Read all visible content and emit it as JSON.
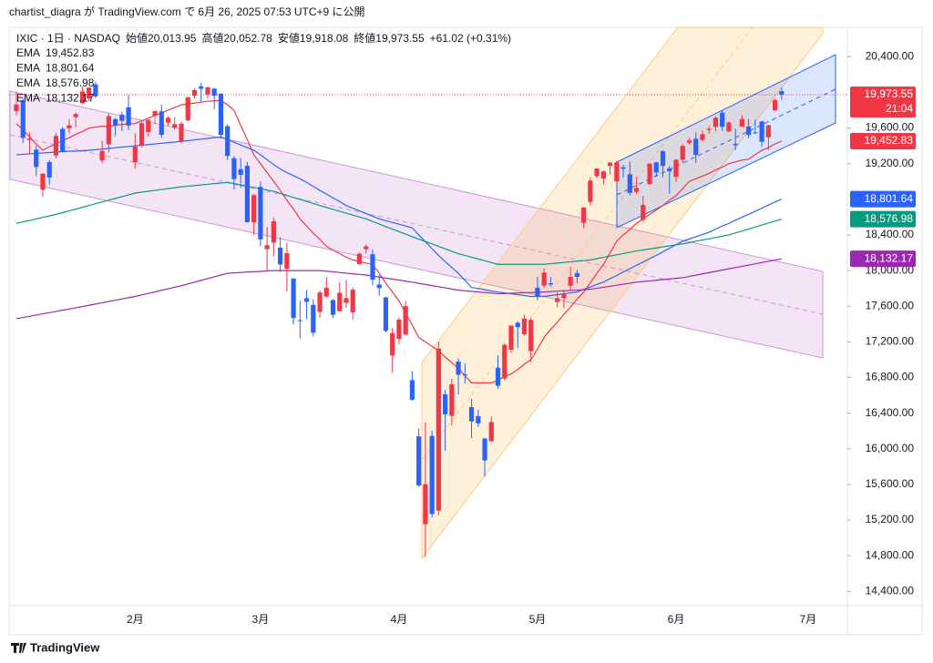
{
  "header": "chartist_diagra が TradingView.com で 6月 26, 2025 07:53 UTC+9 に公開",
  "footer": "TradingView",
  "chart_data": {
    "type": "candlestick",
    "symbol": "IXIC · 1日 · NASDAQ",
    "ohlc_legend": [
      {
        "label": "始値",
        "value": "20,013.95"
      },
      {
        "label": "高値",
        "value": "20,052.78"
      },
      {
        "label": "安値",
        "value": "19,918.08"
      },
      {
        "label": "終値",
        "value": "19,973.55"
      }
    ],
    "change": "+61.02 (+0.31%)",
    "last_price_label": "19,973.55",
    "countdown": "21:04",
    "up_color": "#f23645",
    "down_color": "#2962ff",
    "grid": false,
    "ylim": [
      14240,
      20730
    ],
    "yticks": [
      {
        "value": 20400,
        "label": "20,400.00"
      },
      {
        "value": 19600,
        "label": "19,600.00"
      },
      {
        "value": 19200,
        "label": "19,200.00"
      },
      {
        "value": 18400,
        "label": "18,400.00"
      },
      {
        "value": 18000,
        "label": "18,000.00"
      },
      {
        "value": 17600,
        "label": "17,600.00"
      },
      {
        "value": 17200,
        "label": "17,200.00"
      },
      {
        "value": 16800,
        "label": "16,800.00"
      },
      {
        "value": 16400,
        "label": "16,400.00"
      },
      {
        "value": 16000,
        "label": "16,000.00"
      },
      {
        "value": 15600,
        "label": "15,600.00"
      },
      {
        "value": 15200,
        "label": "15,200.00"
      },
      {
        "value": 14800,
        "label": "14,800.00"
      },
      {
        "value": 14400,
        "label": "14,400.00"
      }
    ],
    "categories": [
      null,
      null,
      null,
      null,
      null,
      null,
      null,
      null,
      null,
      null,
      null,
      null,
      null,
      null,
      null,
      null,
      null,
      null,
      "2月",
      null,
      null,
      null,
      null,
      null,
      null,
      null,
      null,
      null,
      null,
      null,
      null,
      null,
      null,
      null,
      null,
      null,
      null,
      "3月",
      null,
      null,
      null,
      null,
      null,
      null,
      null,
      null,
      null,
      null,
      null,
      null,
      null,
      null,
      null,
      null,
      null,
      null,
      null,
      null,
      "4月",
      null,
      null,
      null,
      null,
      null,
      null,
      null,
      null,
      null,
      null,
      null,
      null,
      null,
      null,
      null,
      null,
      null,
      null,
      null,
      null,
      "5月",
      null,
      null,
      null,
      null,
      null,
      null,
      null,
      null,
      null,
      null,
      null,
      null,
      null,
      null,
      null,
      null,
      null,
      null,
      null,
      null,
      "6月",
      null,
      null,
      null,
      null,
      null,
      null,
      null,
      null,
      null,
      null,
      null,
      null,
      null,
      null,
      null,
      null,
      null,
      null,
      null,
      "7月"
    ],
    "open": [
      19790,
      19909,
      19465,
      19358,
      18906,
      19218,
      19293,
      19590,
      19597,
      19722,
      19878,
      19932,
      20089,
      19234,
      19418,
      19699,
      19750,
      19832,
      19215,
      19400,
      19555,
      19736,
      19787,
      19660,
      19603,
      19454,
      19685,
      19963,
      20068,
      19976,
      20042,
      19986,
      19620,
      19260,
      19138,
      19176,
      18541,
      18938,
      18240,
      18314,
      18258,
      18021,
      17911,
      17443,
      17690,
      17615,
      17536,
      17709,
      17669,
      17544,
      17638,
      17532,
      18072,
      18240,
      18183,
      17843,
      17698,
      17047,
      17232,
      17281,
      16771,
      16139,
      15153,
      16144,
      15306,
      16612,
      16369,
      16980,
      16835,
      16468,
      16367,
      16115,
      16085,
      16911,
      16789,
      17111,
      17414,
      17285,
      17097,
      17808,
      17832,
      17858,
      17647,
      17693,
      17830,
      17972,
      18537,
      18771,
      19060,
      19032,
      19175,
      19001,
      19160,
      19081,
      18883,
      18570,
      18971,
      19214,
      19340,
      19147,
      19051,
      19243,
      19435,
      19479,
      19467,
      19579,
      19613,
      19772,
      19562,
      19421,
      19615,
      19616,
      19551,
      19674,
      19495,
      19800,
      20013.95,
      null,
      null,
      null,
      null
    ],
    "high": [
      20007,
      19936,
      19551,
      19402,
      19089,
      19237,
      19548,
      19610,
      19701,
      19774,
      20069,
      20056,
      20118,
      19459,
      19763,
      19713,
      19782,
      19969,
      19538,
      19671,
      19696,
      19792,
      19862,
      19733,
      19721,
      19675,
      19950,
      20045,
      20110,
      20065,
      20048,
      19986,
      19643,
      19285,
      19264,
      19219,
      18859,
      19000,
      18491,
      18597,
      18375,
      18314,
      17911,
      17660,
      17783,
      17678,
      17777,
      17922,
      17681,
      17865,
      17897,
      17811,
      18202,
      18293,
      18240,
      17950,
      17707,
      17353,
      17473,
      17660,
      16872,
      16229,
      16292,
      16203,
      17203,
      16665,
      16788,
      17014,
      16959,
      16560,
      16438,
      16123,
      16364,
      17049,
      17183,
      17383,
      17432,
      17505,
      17473,
      17929,
      18025,
      17932,
      17758,
      17786,
      18041,
      18005,
      18714,
      19049,
      19151,
      19125,
      19220,
      19232,
      19189,
      19225,
      19050,
      18840,
      19206,
      19221,
      19354,
      19174,
      19251,
      19420,
      19489,
      19550,
      19569,
      19624,
      19734,
      19803,
      19675,
      19593,
      19745,
      19702,
      19694,
      19681,
      19635,
      19932,
      20052.78,
      null,
      null,
      null,
      null
    ],
    "low": [
      19737,
      19433,
      19308,
      19061,
      18831,
      18964,
      19258,
      19334,
      19537,
      19602,
      19870,
      19903,
      19935,
      19204,
      19326,
      19509,
      19565,
      19576,
      19141,
      19384,
      19502,
      19643,
      19491,
      19626,
      19580,
      19431,
      19675,
      19932,
      19897,
      19927,
      19811,
      19482,
      19241,
      18910,
      18929,
      18538,
      18399,
      18276,
      17991,
      18162,
      17988,
      17768,
      17394,
      17238,
      17455,
      17262,
      17470,
      17694,
      17468,
      17544,
      17581,
      17450,
      18066,
      18191,
      17833,
      17716,
      17307,
      16855,
      17175,
      17281,
      16539,
      15575,
      14784,
      15227,
      15257,
      15979,
      16262,
      16608,
      16733,
      16120,
      16245,
      15685,
      16084,
      16670,
      16766,
      17074,
      17128,
      17269,
      16974,
      17667,
      17806,
      17820,
      17590,
      17578,
      17778,
      17858,
      18477,
      18733,
      19037,
      18966,
      19081,
      18990,
      19044,
      18843,
      18858,
      18550,
      18962,
      19054,
      19047,
      18862,
      18995,
      19210,
      19415,
      19209,
      19449,
      19536,
      19560,
      19570,
      19553,
      19352,
      19615,
      19485,
      19532,
      19388,
      19352,
      19790,
      19918.08,
      null,
      null,
      null,
      null
    ],
    "close": [
      19864,
      19490,
      19479,
      19162,
      19088,
      19044,
      19511,
      19338,
      19630,
      19757,
      20009,
      20054,
      19954,
      19342,
      19734,
      19632,
      19681,
      19627,
      19391,
      19654,
      19692,
      19791,
      19523,
      19714,
      19643,
      19649,
      19945,
      20026,
      20041,
      20056,
      19962,
      19524,
      19286,
      19026,
      19075,
      18544,
      18847,
      18350,
      18285,
      18553,
      18069,
      18196,
      17468,
      17436,
      17649,
      17303,
      17754,
      17808,
      17504,
      17751,
      17692,
      17784,
      18189,
      18272,
      17899,
      17804,
      17323,
      17299,
      17450,
      17601,
      16551,
      15588,
      15603,
      15268,
      17125,
      16387,
      16724,
      16831,
      16823,
      16307,
      16286,
      15870,
      16300,
      16708,
      17166,
      17383,
      17366,
      17461,
      17446,
      17710,
      17978,
      17844,
      17690,
      17738,
      17929,
      17929,
      18708,
      19010,
      19146,
      19112,
      19211,
      19215,
      19143,
      18872,
      18926,
      18737,
      19199,
      19101,
      19175,
      19114,
      19243,
      19399,
      19460,
      19298,
      19530,
      19591,
      19715,
      19615,
      19662,
      19407,
      19701,
      19521,
      19546,
      19447,
      19631,
      19913,
      19973.55,
      null,
      null,
      null,
      null
    ],
    "series": [
      {
        "name": "EMA",
        "color": "#f23645",
        "last_label": "19,452.83",
        "values": [
          19650,
          19580,
          19500,
          19420,
          19350,
          19390,
          19420,
          19460,
          19490,
          19530,
          19560,
          19600,
          19610,
          19620,
          19620,
          19630,
          19640,
          19645,
          19650,
          19680,
          19710,
          19740,
          19770,
          19800,
          19830,
          19860,
          19870,
          19880,
          19890,
          19900,
          19905,
          19910,
          19860,
          19800,
          19630,
          19470,
          19300,
          19200,
          19100,
          19000,
          18900,
          18790,
          18690,
          18580,
          18500,
          18420,
          18350,
          18270,
          18230,
          18190,
          18150,
          18120,
          18100,
          18085,
          18070,
          17970,
          17860,
          17760,
          17660,
          17520,
          17390,
          17250,
          17200,
          17150,
          17100,
          17030,
          16970,
          16900,
          16820,
          16740,
          16740,
          16740,
          16740,
          16770,
          16810,
          16840,
          16890,
          16950,
          17000,
          17120,
          17250,
          17340,
          17420,
          17510,
          17590,
          17680,
          17760,
          17860,
          17970,
          18070,
          18200,
          18330,
          18400,
          18460,
          18530,
          18580,
          18630,
          18680,
          18730,
          18790,
          18840,
          18920,
          19000,
          19030,
          19060,
          19090,
          19130,
          19160,
          19200,
          19220,
          19240,
          19250,
          19300,
          19350,
          19380,
          19420,
          19452.83,
          null,
          null,
          null,
          null
        ]
      },
      {
        "name": "EMA",
        "color": "#2962ff",
        "last_label": "18,801.64",
        "values": [
          19300,
          19305,
          19310,
          19315,
          19320,
          19325,
          19330,
          19335,
          19340,
          19340,
          19345,
          19350,
          19357,
          19364,
          19371,
          19379,
          19386,
          19393,
          19400,
          19407,
          19414,
          19421,
          19429,
          19436,
          19443,
          19450,
          19458,
          19467,
          19475,
          19483,
          19492,
          19500,
          19470,
          19440,
          19410,
          19380,
          19350,
          19300,
          19245,
          19190,
          19140,
          19100,
          19065,
          19030,
          18990,
          18945,
          18900,
          18860,
          18815,
          18775,
          18730,
          18700,
          18670,
          18640,
          18610,
          18580,
          18560,
          18540,
          18520,
          18500,
          18480,
          18400,
          18325,
          18245,
          18170,
          18100,
          18035,
          17970,
          17890,
          17810,
          17800,
          17785,
          17770,
          17760,
          17750,
          17740,
          17730,
          17720,
          17710,
          17710,
          17710,
          17720,
          17730,
          17740,
          17750,
          17760,
          17790,
          17815,
          17845,
          17870,
          17910,
          17945,
          17985,
          18020,
          18060,
          18095,
          18135,
          18170,
          18210,
          18250,
          18290,
          18330,
          18355,
          18380,
          18405,
          18430,
          18465,
          18500,
          18530,
          18565,
          18600,
          18630,
          18665,
          18700,
          18735,
          18770,
          18801.64,
          null,
          null,
          null,
          null
        ]
      },
      {
        "name": "EMA",
        "color": "#089981",
        "last_label": "18,576.98",
        "values": [
          18530,
          18547,
          18563,
          18580,
          18597,
          18613,
          18630,
          18650,
          18670,
          18690,
          18710,
          18730,
          18750,
          18770,
          18790,
          18810,
          18830,
          18850,
          18870,
          18880,
          18890,
          18900,
          18910,
          18920,
          18930,
          18940,
          18947,
          18954,
          18961,
          18969,
          18976,
          18983,
          18990,
          18976,
          18961,
          18947,
          18933,
          18919,
          18904,
          18890,
          18867,
          18844,
          18821,
          18799,
          18776,
          18753,
          18730,
          18709,
          18687,
          18666,
          18644,
          18623,
          18601,
          18580,
          18551,
          18523,
          18494,
          18466,
          18437,
          18409,
          18380,
          18353,
          18326,
          18299,
          18271,
          18244,
          18217,
          18190,
          18170,
          18150,
          18130,
          18110,
          18090,
          18070,
          18070,
          18070,
          18070,
          18070,
          18070,
          18070,
          18070,
          18077,
          18084,
          18091,
          18099,
          18106,
          18113,
          18120,
          18134,
          18149,
          18163,
          18177,
          18191,
          18206,
          18220,
          18231,
          18243,
          18254,
          18266,
          18277,
          18289,
          18300,
          18314,
          18329,
          18343,
          18357,
          18371,
          18386,
          18400,
          18422,
          18444,
          18466,
          18488,
          18511,
          18533,
          18555,
          18576.98,
          null,
          null,
          null,
          null
        ]
      },
      {
        "name": "EMA",
        "color": "#9c27b0",
        "last_label": "18,132.17",
        "values": [
          17460,
          17474,
          17487,
          17501,
          17515,
          17528,
          17542,
          17555,
          17569,
          17583,
          17596,
          17610,
          17624,
          17639,
          17653,
          17667,
          17681,
          17696,
          17710,
          17727,
          17744,
          17761,
          17779,
          17796,
          17813,
          17830,
          17850,
          17870,
          17890,
          17910,
          17930,
          17950,
          17970,
          17974,
          17979,
          17983,
          17987,
          17991,
          17996,
          18000,
          18000,
          18000,
          18000,
          18000,
          18000,
          18000,
          18000,
          17993,
          17986,
          17979,
          17971,
          17964,
          17957,
          17950,
          17939,
          17927,
          17916,
          17904,
          17893,
          17881,
          17870,
          17857,
          17844,
          17831,
          17819,
          17806,
          17793,
          17780,
          17773,
          17767,
          17760,
          17753,
          17747,
          17740,
          17743,
          17746,
          17749,
          17751,
          17754,
          17757,
          17760,
          17764,
          17769,
          17773,
          17777,
          17781,
          17786,
          17790,
          17801,
          17813,
          17824,
          17836,
          17847,
          17859,
          17870,
          17877,
          17884,
          17891,
          17899,
          17906,
          17913,
          17920,
          17934,
          17949,
          17963,
          17977,
          17991,
          18006,
          18020,
          18034,
          18048,
          18062,
          18076,
          18090,
          18104,
          18118,
          18132.17,
          null,
          null,
          null,
          null
        ]
      }
    ]
  }
}
